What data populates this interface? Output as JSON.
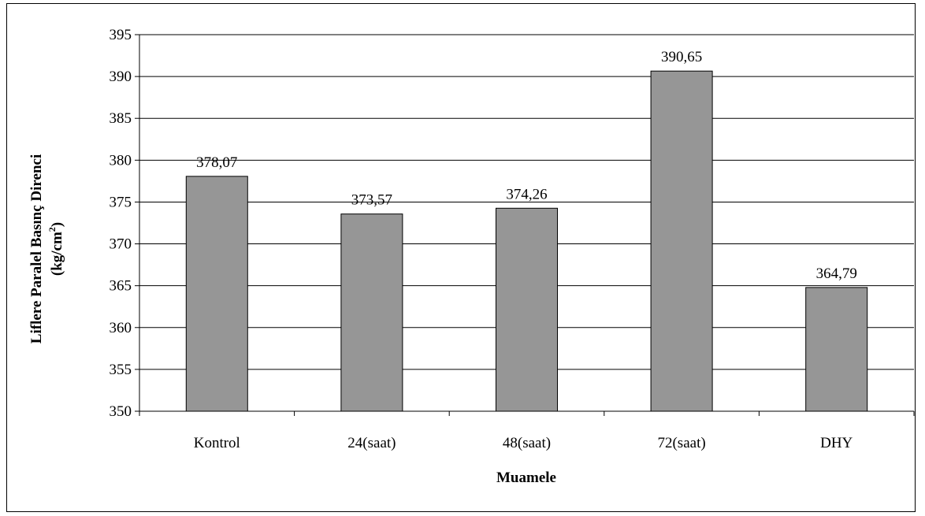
{
  "chart_data": {
    "type": "bar",
    "title": "",
    "categories": [
      "Kontrol",
      "24(saat)",
      "48(saat)",
      "72(saat)",
      "DHY"
    ],
    "values": [
      378.07,
      373.57,
      374.26,
      390.65,
      364.79
    ],
    "data_labels": [
      "378,07",
      "373,57",
      "374,26",
      "390,65",
      "364,79"
    ],
    "xlabel": "Muamele",
    "ylabel_line1": "Liflere Paralel Basınç Direnci",
    "ylabel_line2_main": "(kg/cm",
    "ylabel_line2_sup": "2",
    "ylabel_line2_end": ")",
    "ylim": [
      350,
      395
    ],
    "yticks": [
      350,
      355,
      360,
      365,
      370,
      375,
      380,
      385,
      390,
      395
    ],
    "grid": true,
    "legend": "none",
    "bar_color": "#969696",
    "grid_color": "#000000"
  }
}
